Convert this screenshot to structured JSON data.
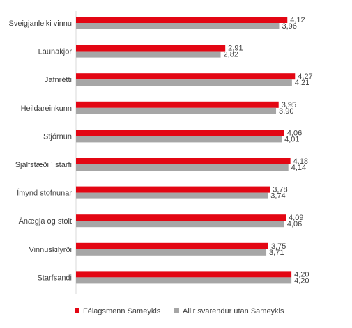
{
  "chart_data": {
    "type": "bar",
    "orientation": "horizontal",
    "categories": [
      "Sveigjanleiki vinnu",
      "Launakjör",
      "Jafnrétti",
      "Heildareinkunn",
      "Stjórnun",
      "Sjálfstæði í starfi",
      "Ímynd stofnunar",
      "Ánægja og stolt",
      "Vinnuskilyrði",
      "Starfsandi"
    ],
    "series": [
      {
        "name": "Félagsmenn Sameykis",
        "color": "#e30613",
        "values": [
          4.12,
          2.91,
          4.27,
          3.95,
          4.06,
          4.18,
          3.78,
          4.09,
          3.75,
          4.2
        ],
        "labels": [
          "4,12",
          "2,91",
          "4,27",
          "3,95",
          "4,06",
          "4,18",
          "3,78",
          "4,09",
          "3,75",
          "4,20"
        ]
      },
      {
        "name": "Allir svarendur utan Sameykis",
        "color": "#a6a6a6",
        "values": [
          3.96,
          2.82,
          4.21,
          3.9,
          4.01,
          4.14,
          3.74,
          4.06,
          3.71,
          4.2
        ],
        "labels": [
          "3,96",
          "2,82",
          "4,21",
          "3,90",
          "4,01",
          "4,14",
          "3,74",
          "4,06",
          "3,71",
          "4,20"
        ]
      }
    ],
    "xlim": [
      0,
      5
    ],
    "grid": false,
    "legend_position": "bottom"
  }
}
